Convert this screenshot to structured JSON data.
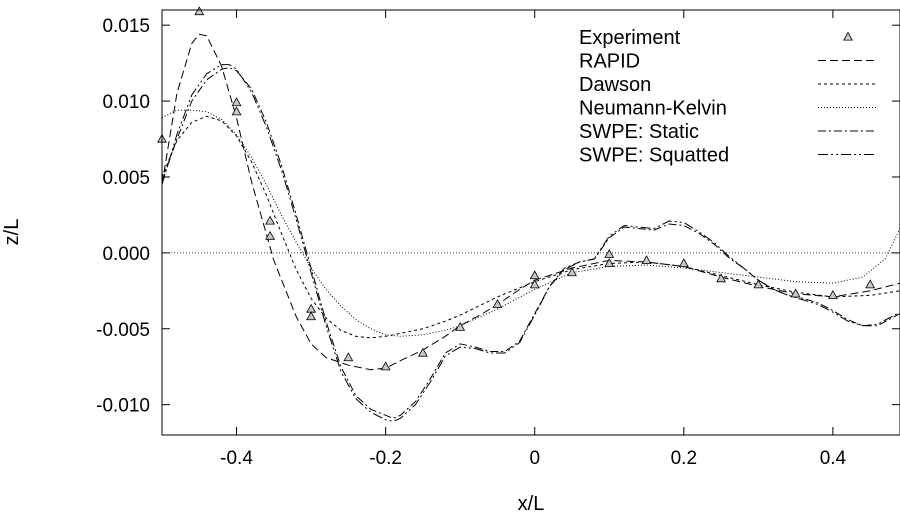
{
  "chart_data": {
    "type": "line",
    "xlabel": "x/L",
    "ylabel": "z/L",
    "xlim": [
      -0.5,
      0.49
    ],
    "ylim": [
      -0.012,
      0.016
    ],
    "x_ticks": [
      "-0.4",
      "-0.2",
      "0",
      "0.2",
      "0.4"
    ],
    "x_tick_values": [
      -0.4,
      -0.2,
      0,
      0.2,
      0.4
    ],
    "y_ticks": [
      "0.015",
      "0.010",
      "0.005",
      "0.000",
      "-0.005",
      "-0.010"
    ],
    "y_tick_values": [
      0.015,
      0.01,
      0.005,
      0.0,
      -0.005,
      -0.01
    ],
    "grid": false,
    "legend_position": "top-right",
    "zero_line": true,
    "series": [
      {
        "name": "Experiment",
        "kind": "markers",
        "marker": "triangle",
        "x": [
          -0.5,
          -0.45,
          -0.4,
          -0.4,
          -0.355,
          -0.355,
          -0.3,
          -0.3,
          -0.25,
          -0.2,
          -0.15,
          -0.1,
          -0.05,
          0.0,
          0.0,
          0.05,
          0.1,
          0.1,
          0.15,
          0.2,
          0.25,
          0.3,
          0.35,
          0.4,
          0.45
        ],
        "y": [
          0.0075,
          0.0159,
          0.0099,
          0.0093,
          0.0021,
          0.0011,
          -0.0037,
          -0.0042,
          -0.0069,
          -0.0075,
          -0.0066,
          -0.0049,
          -0.0034,
          -0.0015,
          -0.0021,
          -0.0013,
          -0.0001,
          -0.0007,
          -0.0005,
          -0.0007,
          -0.0017,
          -0.0021,
          -0.0027,
          -0.0028,
          -0.0021
        ]
      },
      {
        "name": "RAPID",
        "dash": "8,4",
        "x": [
          -0.5,
          -0.48,
          -0.46,
          -0.45,
          -0.44,
          -0.42,
          -0.4,
          -0.38,
          -0.35,
          -0.32,
          -0.3,
          -0.28,
          -0.25,
          -0.22,
          -0.2,
          -0.18,
          -0.15,
          -0.12,
          -0.1,
          -0.07,
          -0.05,
          -0.02,
          0.0,
          0.05,
          0.1,
          0.15,
          0.2,
          0.25,
          0.3,
          0.35,
          0.4,
          0.45,
          0.49
        ],
        "y": [
          0.0045,
          0.0105,
          0.0138,
          0.0144,
          0.0143,
          0.0123,
          0.0089,
          0.0047,
          -0.0005,
          -0.0042,
          -0.006,
          -0.0069,
          -0.0074,
          -0.0077,
          -0.0076,
          -0.0071,
          -0.0064,
          -0.0055,
          -0.0048,
          -0.004,
          -0.0034,
          -0.0024,
          -0.0018,
          -0.001,
          -0.0005,
          -0.0006,
          -0.0009,
          -0.0016,
          -0.0022,
          -0.0027,
          -0.0029,
          -0.0025,
          -0.002
        ]
      },
      {
        "name": "Dawson",
        "dash": "3,3",
        "x": [
          -0.5,
          -0.48,
          -0.46,
          -0.44,
          -0.42,
          -0.4,
          -0.38,
          -0.36,
          -0.34,
          -0.32,
          -0.3,
          -0.28,
          -0.26,
          -0.24,
          -0.22,
          -0.2,
          -0.18,
          -0.15,
          -0.12,
          -0.1,
          -0.05,
          0.0,
          0.05,
          0.1,
          0.15,
          0.2,
          0.25,
          0.3,
          0.35,
          0.4,
          0.45,
          0.49
        ],
        "y": [
          0.005,
          0.0074,
          0.0086,
          0.009,
          0.0087,
          0.0077,
          0.006,
          0.0038,
          0.0013,
          -0.0011,
          -0.003,
          -0.0043,
          -0.0051,
          -0.0055,
          -0.0056,
          -0.0055,
          -0.0053,
          -0.005,
          -0.0045,
          -0.0041,
          -0.0029,
          -0.0019,
          -0.0011,
          -0.0007,
          -0.0006,
          -0.0009,
          -0.0015,
          -0.0021,
          -0.0026,
          -0.0029,
          -0.0028,
          -0.0025
        ]
      },
      {
        "name": "Neumann-Kelvin",
        "dash": "1,2",
        "x": [
          -0.5,
          -0.48,
          -0.46,
          -0.44,
          -0.42,
          -0.4,
          -0.38,
          -0.36,
          -0.34,
          -0.32,
          -0.3,
          -0.28,
          -0.26,
          -0.24,
          -0.22,
          -0.2,
          -0.18,
          -0.15,
          -0.12,
          -0.1,
          -0.05,
          0.0,
          0.05,
          0.1,
          0.15,
          0.2,
          0.25,
          0.3,
          0.35,
          0.4,
          0.44,
          0.47,
          0.49
        ],
        "y": [
          0.0089,
          0.0094,
          0.0094,
          0.0093,
          0.0088,
          0.0078,
          0.0063,
          0.0045,
          0.0025,
          0.0007,
          -0.001,
          -0.0024,
          -0.0035,
          -0.0044,
          -0.005,
          -0.0054,
          -0.0055,
          -0.0054,
          -0.0051,
          -0.0048,
          -0.0037,
          -0.0024,
          -0.0013,
          -0.0009,
          -0.0008,
          -0.001,
          -0.0013,
          -0.0016,
          -0.0019,
          -0.002,
          -0.0016,
          -0.0004,
          0.0016
        ]
      },
      {
        "name": "SWPE: Static",
        "dash": "8,3,2,3",
        "x": [
          -0.5,
          -0.48,
          -0.46,
          -0.44,
          -0.42,
          -0.41,
          -0.4,
          -0.38,
          -0.36,
          -0.34,
          -0.32,
          -0.3,
          -0.28,
          -0.26,
          -0.24,
          -0.22,
          -0.2,
          -0.19,
          -0.18,
          -0.16,
          -0.14,
          -0.12,
          -0.1,
          -0.08,
          -0.06,
          -0.04,
          -0.02,
          0.0,
          0.02,
          0.04,
          0.06,
          0.08,
          0.1,
          0.12,
          0.14,
          0.16,
          0.18,
          0.2,
          0.22,
          0.24,
          0.26,
          0.28,
          0.3,
          0.32,
          0.34,
          0.36,
          0.38,
          0.4,
          0.42,
          0.44,
          0.46,
          0.49
        ],
        "y": [
          0.0047,
          0.0075,
          0.01,
          0.0114,
          0.0121,
          0.0122,
          0.012,
          0.0108,
          0.0086,
          0.0058,
          0.0025,
          -0.001,
          -0.0045,
          -0.0075,
          -0.0094,
          -0.0103,
          -0.0107,
          -0.0109,
          -0.0107,
          -0.0098,
          -0.0083,
          -0.0066,
          -0.006,
          -0.0062,
          -0.0065,
          -0.0065,
          -0.0058,
          -0.004,
          -0.0022,
          -0.001,
          -0.0006,
          -0.0004,
          0.001,
          0.0017,
          0.0016,
          0.0015,
          0.0019,
          0.0018,
          0.0013,
          0.0006,
          -0.0003,
          -0.001,
          -0.0018,
          -0.0024,
          -0.0028,
          -0.003,
          -0.0033,
          -0.0038,
          -0.0044,
          -0.0048,
          -0.0048,
          -0.004
        ]
      },
      {
        "name": "SWPE: Squatted",
        "dash": "10,3,2,3,2,3",
        "x": [
          -0.5,
          -0.48,
          -0.46,
          -0.44,
          -0.42,
          -0.41,
          -0.4,
          -0.38,
          -0.36,
          -0.34,
          -0.32,
          -0.3,
          -0.28,
          -0.26,
          -0.24,
          -0.22,
          -0.2,
          -0.19,
          -0.18,
          -0.16,
          -0.14,
          -0.12,
          -0.1,
          -0.08,
          -0.06,
          -0.04,
          -0.02,
          0.0,
          0.02,
          0.04,
          0.06,
          0.08,
          0.1,
          0.12,
          0.14,
          0.16,
          0.18,
          0.2,
          0.22,
          0.24,
          0.26,
          0.28,
          0.3,
          0.32,
          0.34,
          0.36,
          0.38,
          0.4,
          0.42,
          0.44,
          0.46,
          0.49
        ],
        "y": [
          0.0045,
          0.0078,
          0.0104,
          0.0118,
          0.0124,
          0.0124,
          0.0121,
          0.0106,
          0.0083,
          0.0055,
          0.0022,
          -0.0013,
          -0.0048,
          -0.0078,
          -0.0096,
          -0.0105,
          -0.011,
          -0.0111,
          -0.0109,
          -0.01,
          -0.0085,
          -0.0068,
          -0.0062,
          -0.0063,
          -0.0066,
          -0.0066,
          -0.0059,
          -0.0041,
          -0.0022,
          -0.0011,
          -0.0006,
          -0.0004,
          0.0011,
          0.0018,
          0.0017,
          0.0016,
          0.0021,
          0.002,
          0.0014,
          0.0007,
          -0.0002,
          -0.001,
          -0.0018,
          -0.0024,
          -0.0028,
          -0.0031,
          -0.0034,
          -0.0039,
          -0.0045,
          -0.0048,
          -0.0047,
          -0.0039
        ]
      }
    ]
  }
}
